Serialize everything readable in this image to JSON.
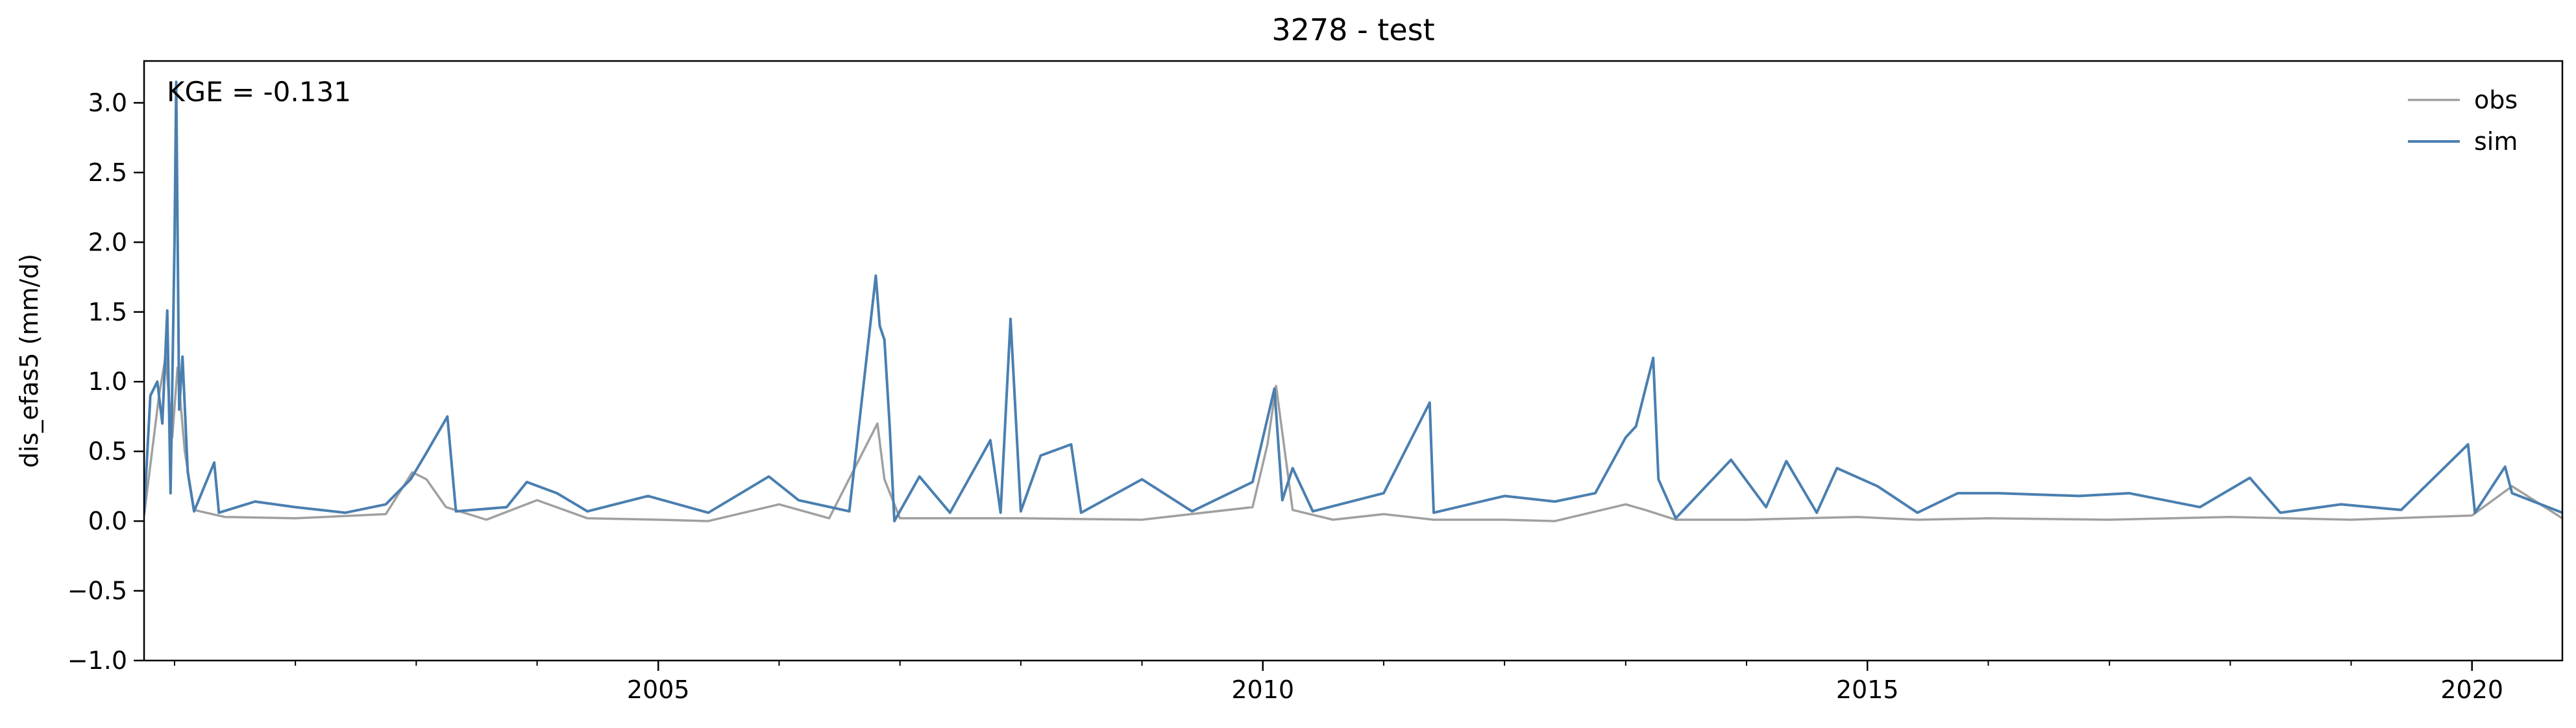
{
  "chart_data": {
    "type": "line",
    "title": "3278 - test",
    "xlabel": "",
    "ylabel": "dis_efas5 (mm/d)",
    "xlim": [
      "2000-10-01",
      "2020-09-30"
    ],
    "ylim": [
      -1.0,
      3.3
    ],
    "grid": false,
    "legend_position": "top-right",
    "annotation": "KGE = -0.131",
    "x_ticks": [
      {
        "date": "2005-01-01",
        "label": "2005"
      },
      {
        "date": "2010-01-01",
        "label": "2010"
      },
      {
        "date": "2015-01-01",
        "label": "2015"
      },
      {
        "date": "2020-01-01",
        "label": "2020"
      }
    ],
    "y_ticks": [
      {
        "value": 3.0,
        "label": "3.0"
      },
      {
        "value": 2.5,
        "label": "2.5"
      },
      {
        "value": 2.0,
        "label": "2.0"
      },
      {
        "value": 1.5,
        "label": "1.5"
      },
      {
        "value": 1.0,
        "label": "1.0"
      },
      {
        "value": 0.5,
        "label": "0.5"
      },
      {
        "value": 0.0,
        "label": "0.0"
      },
      {
        "value": -0.5,
        "label": "−0.5"
      },
      {
        "value": -1.0,
        "label": "−1.0"
      }
    ],
    "series": [
      {
        "name": "obs",
        "color": "#a0a0a0",
        "points": [
          [
            "2000-10-01",
            0.04
          ],
          [
            "2000-11-15",
            0.9
          ],
          [
            "2000-12-05",
            1.18
          ],
          [
            "2000-12-25",
            0.6
          ],
          [
            "2001-01-10",
            1.1
          ],
          [
            "2001-02-01",
            0.5
          ],
          [
            "2001-03-01",
            0.08
          ],
          [
            "2001-06-01",
            0.03
          ],
          [
            "2002-01-01",
            0.02
          ],
          [
            "2002-10-01",
            0.05
          ],
          [
            "2002-12-20",
            0.35
          ],
          [
            "2003-02-01",
            0.3
          ],
          [
            "2003-04-01",
            0.1
          ],
          [
            "2003-08-01",
            0.01
          ],
          [
            "2004-01-01",
            0.15
          ],
          [
            "2004-06-01",
            0.02
          ],
          [
            "2005-01-01",
            0.01
          ],
          [
            "2005-06-01",
            0.0
          ],
          [
            "2006-01-01",
            0.12
          ],
          [
            "2006-06-01",
            0.02
          ],
          [
            "2006-10-25",
            0.7
          ],
          [
            "2006-11-15",
            0.3
          ],
          [
            "2007-01-01",
            0.02
          ],
          [
            "2008-01-01",
            0.02
          ],
          [
            "2009-01-01",
            0.01
          ],
          [
            "2009-12-01",
            0.1
          ],
          [
            "2010-01-15",
            0.55
          ],
          [
            "2010-02-10",
            0.97
          ],
          [
            "2010-04-01",
            0.08
          ],
          [
            "2010-08-01",
            0.01
          ],
          [
            "2011-01-01",
            0.05
          ],
          [
            "2011-06-01",
            0.01
          ],
          [
            "2012-01-01",
            0.01
          ],
          [
            "2012-06-01",
            0.0
          ],
          [
            "2013-01-01",
            0.12
          ],
          [
            "2013-03-01",
            0.08
          ],
          [
            "2013-06-01",
            0.01
          ],
          [
            "2014-01-01",
            0.01
          ],
          [
            "2014-12-01",
            0.03
          ],
          [
            "2015-06-01",
            0.01
          ],
          [
            "2016-01-01",
            0.02
          ],
          [
            "2017-01-01",
            0.01
          ],
          [
            "2018-01-01",
            0.03
          ],
          [
            "2019-01-01",
            0.01
          ],
          [
            "2020-01-01",
            0.04
          ],
          [
            "2020-05-01",
            0.25
          ],
          [
            "2020-09-30",
            0.02
          ]
        ]
      },
      {
        "name": "sim",
        "color": "#4a7fb0",
        "points": [
          [
            "2000-10-01",
            0.06
          ],
          [
            "2000-10-20",
            0.9
          ],
          [
            "2000-11-10",
            1.0
          ],
          [
            "2000-11-25",
            0.7
          ],
          [
            "2000-12-10",
            1.51
          ],
          [
            "2000-12-20",
            0.2
          ],
          [
            "2001-01-01",
            2.0
          ],
          [
            "2001-01-06",
            3.15
          ],
          [
            "2001-01-15",
            0.8
          ],
          [
            "2001-01-25",
            1.18
          ],
          [
            "2001-02-10",
            0.35
          ],
          [
            "2001-03-01",
            0.07
          ],
          [
            "2001-05-01",
            0.42
          ],
          [
            "2001-05-15",
            0.06
          ],
          [
            "2001-09-01",
            0.14
          ],
          [
            "2002-01-01",
            0.1
          ],
          [
            "2002-06-01",
            0.06
          ],
          [
            "2002-10-01",
            0.12
          ],
          [
            "2002-12-15",
            0.3
          ],
          [
            "2003-02-01",
            0.49
          ],
          [
            "2003-04-05",
            0.75
          ],
          [
            "2003-05-01",
            0.07
          ],
          [
            "2003-10-01",
            0.1
          ],
          [
            "2003-12-01",
            0.28
          ],
          [
            "2004-03-01",
            0.2
          ],
          [
            "2004-06-01",
            0.07
          ],
          [
            "2004-12-01",
            0.18
          ],
          [
            "2005-06-01",
            0.06
          ],
          [
            "2005-12-01",
            0.32
          ],
          [
            "2006-03-01",
            0.15
          ],
          [
            "2006-08-01",
            0.07
          ],
          [
            "2006-10-20",
            1.76
          ],
          [
            "2006-11-01",
            1.4
          ],
          [
            "2006-11-15",
            1.3
          ],
          [
            "2006-12-01",
            0.68
          ],
          [
            "2006-12-15",
            0.0
          ],
          [
            "2007-03-01",
            0.32
          ],
          [
            "2007-06-01",
            0.06
          ],
          [
            "2007-10-01",
            0.58
          ],
          [
            "2007-11-01",
            0.06
          ],
          [
            "2007-12-01",
            1.45
          ],
          [
            "2008-01-01",
            0.07
          ],
          [
            "2008-03-01",
            0.47
          ],
          [
            "2008-06-01",
            0.55
          ],
          [
            "2008-07-01",
            0.06
          ],
          [
            "2009-01-01",
            0.3
          ],
          [
            "2009-06-01",
            0.07
          ],
          [
            "2009-12-01",
            0.28
          ],
          [
            "2010-02-05",
            0.95
          ],
          [
            "2010-03-01",
            0.15
          ],
          [
            "2010-04-01",
            0.38
          ],
          [
            "2010-06-01",
            0.07
          ],
          [
            "2011-01-01",
            0.2
          ],
          [
            "2011-05-20",
            0.85
          ],
          [
            "2011-06-01",
            0.06
          ],
          [
            "2012-01-01",
            0.18
          ],
          [
            "2012-06-01",
            0.14
          ],
          [
            "2012-10-01",
            0.2
          ],
          [
            "2013-01-01",
            0.6
          ],
          [
            "2013-02-01",
            0.68
          ],
          [
            "2013-03-25",
            1.17
          ],
          [
            "2013-04-10",
            0.3
          ],
          [
            "2013-06-01",
            0.02
          ],
          [
            "2013-11-15",
            0.44
          ],
          [
            "2014-03-01",
            0.1
          ],
          [
            "2014-05-01",
            0.43
          ],
          [
            "2014-08-01",
            0.06
          ],
          [
            "2014-10-01",
            0.38
          ],
          [
            "2015-02-01",
            0.25
          ],
          [
            "2015-06-01",
            0.06
          ],
          [
            "2015-10-01",
            0.2
          ],
          [
            "2016-02-01",
            0.2
          ],
          [
            "2016-10-01",
            0.18
          ],
          [
            "2017-03-01",
            0.2
          ],
          [
            "2017-10-01",
            0.1
          ],
          [
            "2018-03-01",
            0.31
          ],
          [
            "2018-06-01",
            0.06
          ],
          [
            "2018-12-01",
            0.12
          ],
          [
            "2019-06-01",
            0.08
          ],
          [
            "2019-12-20",
            0.55
          ],
          [
            "2020-01-10",
            0.06
          ],
          [
            "2020-04-10",
            0.39
          ],
          [
            "2020-05-01",
            0.2
          ],
          [
            "2020-09-30",
            0.06
          ]
        ]
      }
    ]
  }
}
